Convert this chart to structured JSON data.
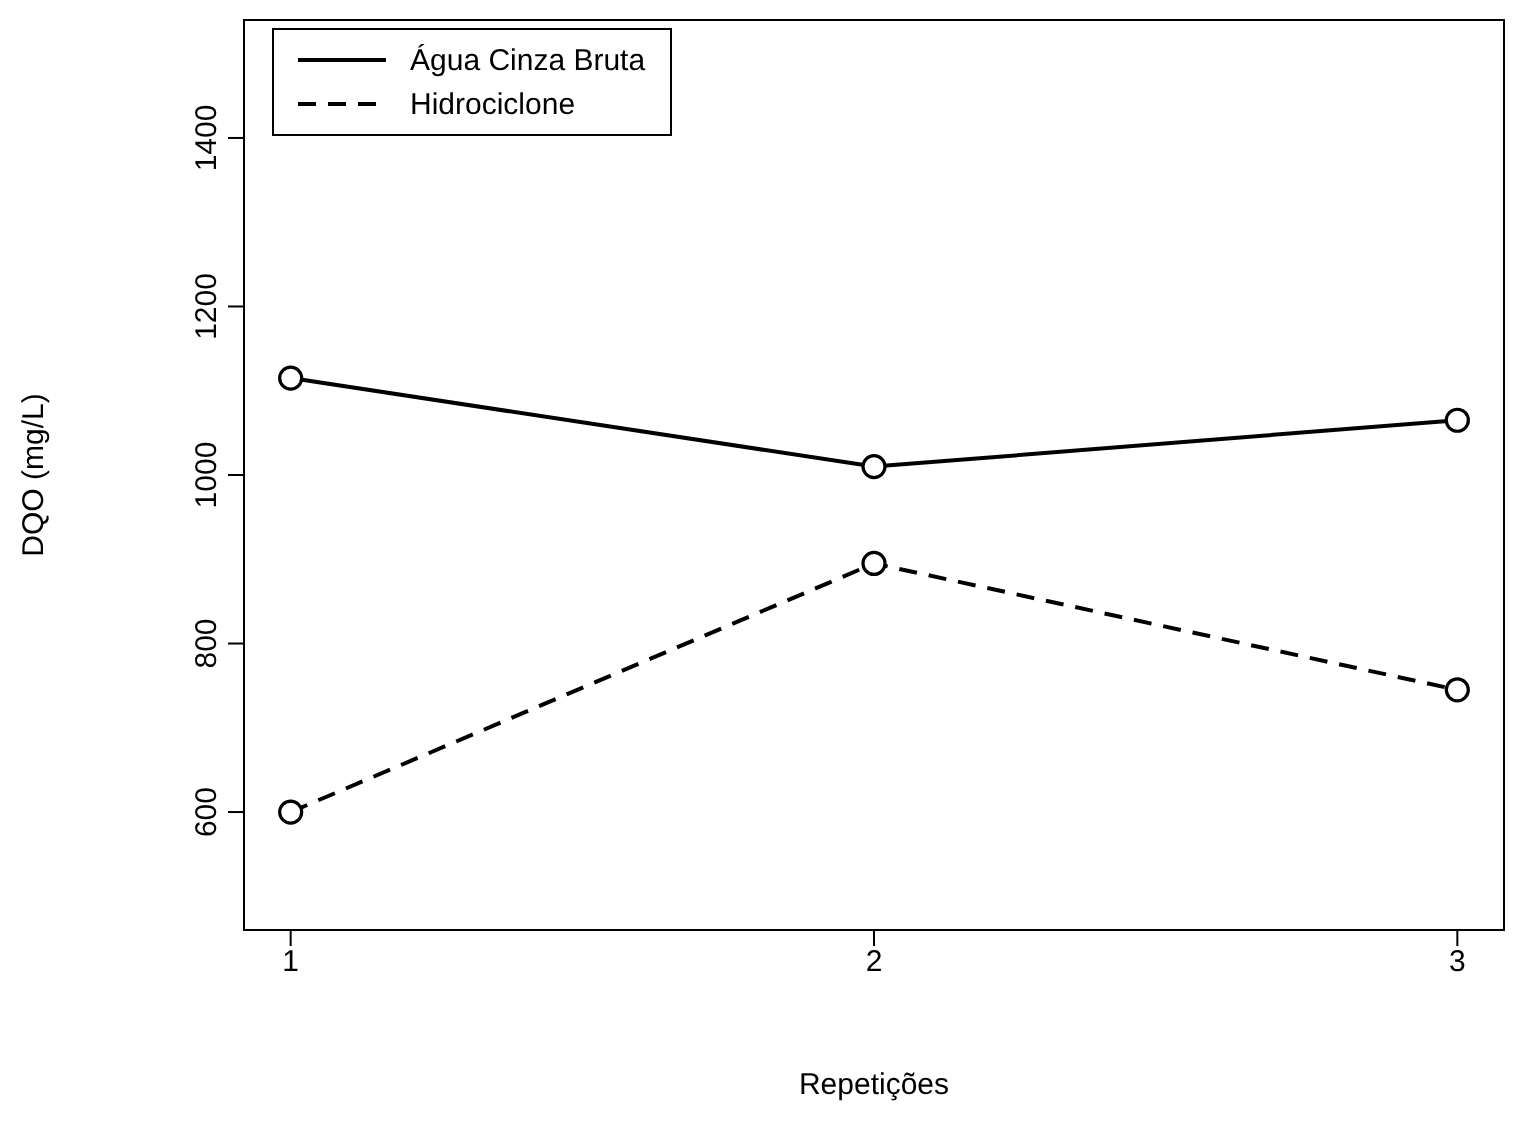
{
  "chart_data": {
    "type": "line",
    "xlabel": "Repetições",
    "ylabel": "DQO (mg/L)",
    "x": [
      1,
      2,
      3
    ],
    "series": [
      {
        "name": "Água Cinza Bruta",
        "color": "#000000",
        "line_style": "solid",
        "values": [
          1115,
          1010,
          1065
        ]
      },
      {
        "name": "Hidrociclone",
        "color": "#000000",
        "line_style": "dashed",
        "values": [
          600,
          895,
          745
        ]
      }
    ],
    "xlim": [
      0.92,
      3.08
    ],
    "xticks": [
      1,
      2,
      3
    ],
    "ylim": [
      460,
      1540
    ],
    "yticks": [
      600,
      800,
      1000,
      1200,
      1400
    ],
    "marker": "circle",
    "grid": false,
    "legend": "top left"
  }
}
